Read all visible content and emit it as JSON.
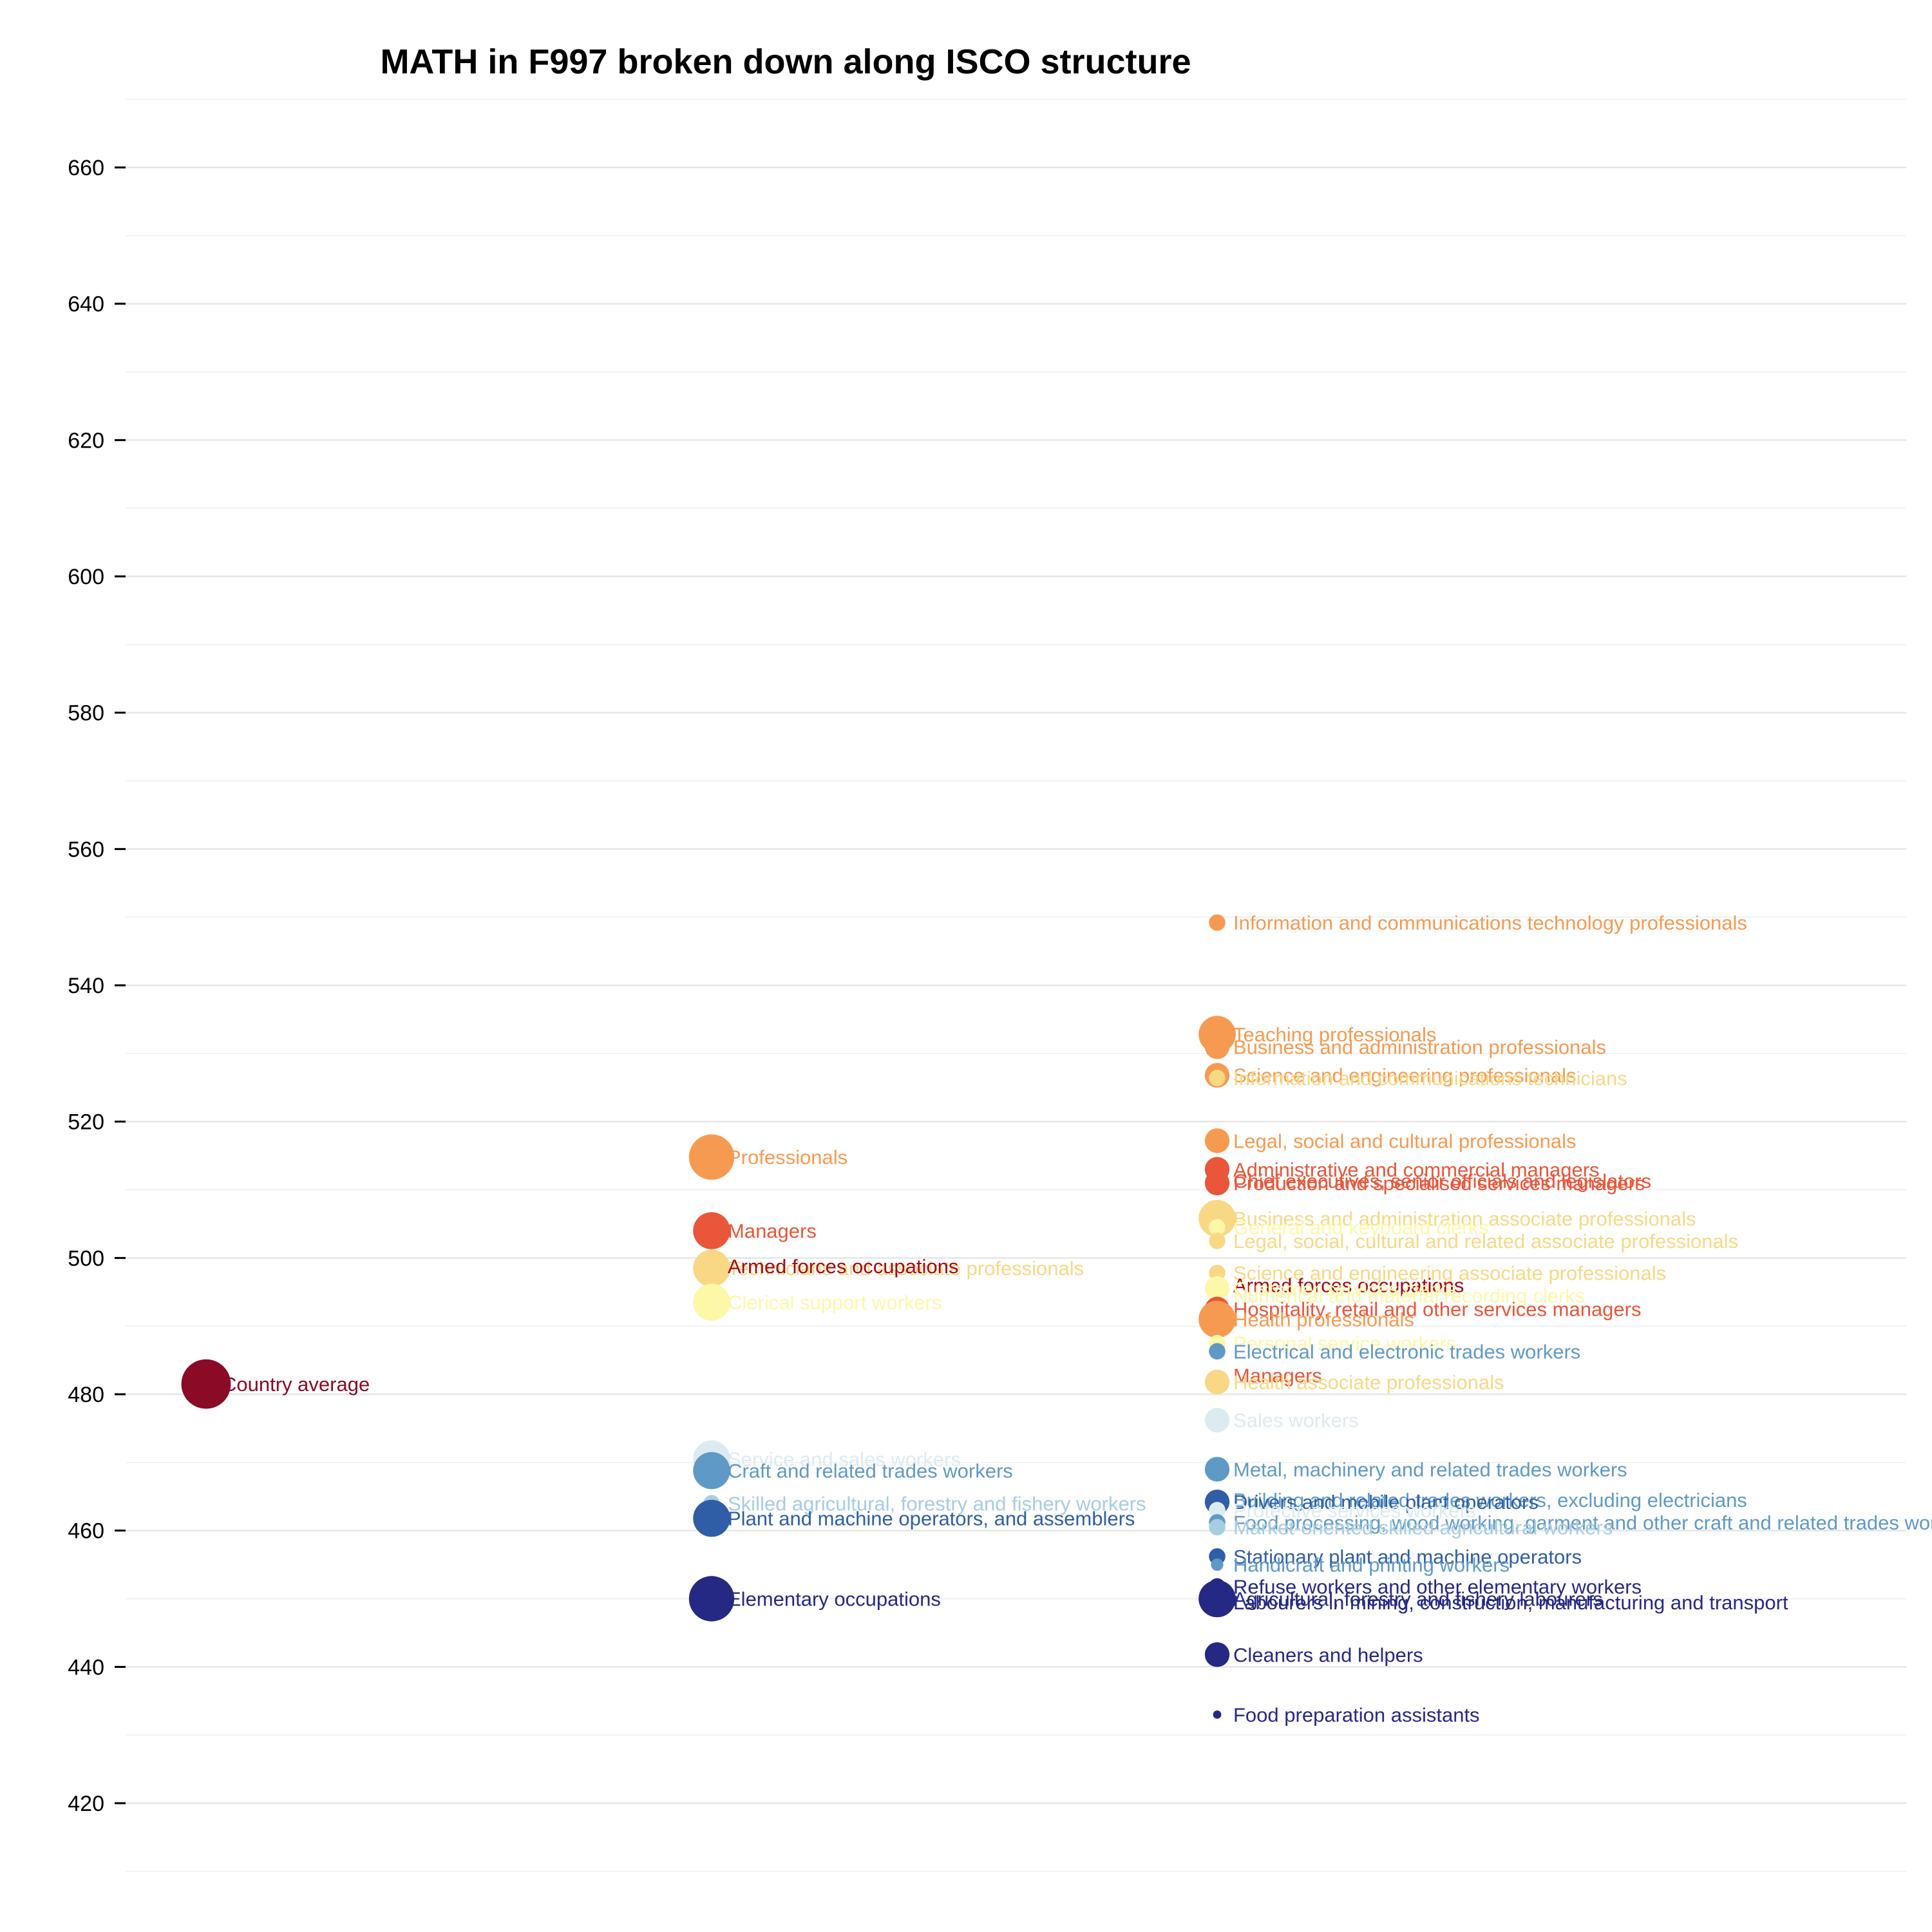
{
  "chart_data": {
    "type": "scatter",
    "title": "MATH in F997 broken down along ISCO structure",
    "xlabel": "",
    "ylabel": "",
    "ylim": [
      410,
      670
    ],
    "yticks": [
      420,
      440,
      460,
      480,
      500,
      520,
      540,
      560,
      580,
      600,
      620,
      640,
      660
    ],
    "grid": true,
    "legend": "none",
    "x_levels": [
      "country",
      "isco1",
      "isco2"
    ],
    "points": [
      {
        "level": "country",
        "label": "Country average",
        "value": 481.5,
        "color": "#8b0a26",
        "size": 12
      },
      {
        "level": "isco1",
        "label": "Professionals",
        "value": 514.8,
        "color": "#f79a51",
        "size": 11
      },
      {
        "level": "isco1",
        "label": "Managers",
        "value": 504.0,
        "color": "#e9563a",
        "size": 9
      },
      {
        "level": "isco1",
        "label": "Technicians and associate professionals",
        "value": 498.5,
        "color": "#f8d885",
        "size": 9
      },
      {
        "level": "isco1",
        "label": "Armed forces occupations",
        "value": 498.8,
        "color": "#a00a1c",
        "size": 0
      },
      {
        "level": "isco1",
        "label": "Clerical support workers",
        "value": 493.5,
        "color": "#fdf8a8",
        "size": 9
      },
      {
        "level": "isco1",
        "label": "Service and sales workers",
        "value": 470.5,
        "color": "#dcebf2",
        "size": 9
      },
      {
        "level": "isco1",
        "label": "Craft and related trades workers",
        "value": 468.8,
        "color": "#5f9ac6",
        "size": 9
      },
      {
        "level": "isco1",
        "label": "Skilled agricultural, forestry and fishery workers",
        "value": 464.0,
        "color": "#a7cde0",
        "size": 4
      },
      {
        "level": "isco1",
        "label": "Plant and machine operators, and assemblers",
        "value": 461.8,
        "color": "#2f5ea6",
        "size": 9
      },
      {
        "level": "isco1",
        "label": "Elementary occupations",
        "value": 450.0,
        "color": "#252983",
        "size": 11
      },
      {
        "level": "isco2",
        "label": "Information and communications technology professionals",
        "value": 549.2,
        "color": "#f79a51",
        "size": 4
      },
      {
        "level": "isco2",
        "label": "Teaching professionals",
        "value": 532.8,
        "color": "#f79a51",
        "size": 9
      },
      {
        "level": "isco2",
        "label": "Business and administration professionals",
        "value": 531.0,
        "color": "#f79a51",
        "size": 6
      },
      {
        "level": "isco2",
        "label": "Science and engineering professionals",
        "value": 526.8,
        "color": "#f79a51",
        "size": 6
      },
      {
        "level": "isco2",
        "label": "Information and communications technicians",
        "value": 526.4,
        "color": "#f8d885",
        "size": 4
      },
      {
        "level": "isco2",
        "label": "Legal, social and cultural professionals",
        "value": 517.2,
        "color": "#f79a51",
        "size": 6
      },
      {
        "level": "isco2",
        "label": "Administrative and commercial managers",
        "value": 513.0,
        "color": "#e9563a",
        "size": 6
      },
      {
        "level": "isco2",
        "label": "Chief executives, senior officials and legislators",
        "value": 511.3,
        "color": "#e9563a",
        "size": 4
      },
      {
        "level": "isco2",
        "label": "Production and specialised services managers",
        "value": 511.0,
        "color": "#e9563a",
        "size": 6
      },
      {
        "level": "isco2",
        "label": "Business and administration associate professionals",
        "value": 505.8,
        "color": "#f8d885",
        "size": 9
      },
      {
        "level": "isco2",
        "label": "General and keyboard clerks",
        "value": 504.5,
        "color": "#fdf8a8",
        "size": 4
      },
      {
        "level": "isco2",
        "label": "Legal, social, cultural and related associate professionals",
        "value": 502.5,
        "color": "#f8d885",
        "size": 4
      },
      {
        "level": "isco2",
        "label": "Science and engineering associate professionals",
        "value": 497.8,
        "color": "#f8d885",
        "size": 4
      },
      {
        "level": "isco2",
        "label": "Armed forces occupations",
        "value": 496.0,
        "color": "#a00a1c",
        "size": 0
      },
      {
        "level": "isco2",
        "label": "Customer services clerks",
        "value": 495.5,
        "color": "#fdf8a8",
        "size": 6
      },
      {
        "level": "isco2",
        "label": "Numerical and material recording clerks",
        "value": 494.5,
        "color": "#fdf8a8",
        "size": 4
      },
      {
        "level": "isco2",
        "label": "Hospitality, retail and other services managers",
        "value": 492.5,
        "color": "#e9563a",
        "size": 6
      },
      {
        "level": "isco2",
        "label": "Health professionals",
        "value": 491.0,
        "color": "#f79a51",
        "size": 9
      },
      {
        "level": "isco2",
        "label": "Personal service workers",
        "value": 487.5,
        "color": "#fdf8a8",
        "size": 4
      },
      {
        "level": "isco2",
        "label": "Electrical and electronic trades workers",
        "value": 486.3,
        "color": "#5f9ac6",
        "size": 4
      },
      {
        "level": "isco2",
        "label": "Managers",
        "value": 482.8,
        "color": "#e9563a",
        "size": 0
      },
      {
        "level": "isco2",
        "label": "Health associate professionals",
        "value": 481.8,
        "color": "#f8d885",
        "size": 6
      },
      {
        "level": "isco2",
        "label": "Sales workers",
        "value": 476.2,
        "color": "#dcebf2",
        "size": 6
      },
      {
        "level": "isco2",
        "label": "Metal, machinery and related trades workers",
        "value": 469.0,
        "color": "#5f9ac6",
        "size": 6
      },
      {
        "level": "isco2",
        "label": "Building and related trades workers, excluding electricians",
        "value": 464.5,
        "color": "#5f9ac6",
        "size": 4
      },
      {
        "level": "isco2",
        "label": "Drivers and mobile plant operators",
        "value": 464.2,
        "color": "#2f5ea6",
        "size": 6
      },
      {
        "level": "isco2",
        "label": "Protective services workers",
        "value": 463.0,
        "color": "#dcebf2",
        "size": 4
      },
      {
        "level": "isco2",
        "label": "Food processing, wood working, garment and other craft and related trades workers",
        "value": 461.2,
        "color": "#5f9ac6",
        "size": 4
      },
      {
        "level": "isco2",
        "label": "Market-oriented skilled agricultural workers",
        "value": 460.5,
        "color": "#a7cde0",
        "size": 4
      },
      {
        "level": "isco2",
        "label": "Stationary plant and machine operators",
        "value": 456.2,
        "color": "#2f5ea6",
        "size": 4
      },
      {
        "level": "isco2",
        "label": "Handicraft and printing workers",
        "value": 455.0,
        "color": "#5f9ac6",
        "size": 3
      },
      {
        "level": "isco2",
        "label": "Refuse workers and other elementary workers",
        "value": 451.8,
        "color": "#252983",
        "size": 4
      },
      {
        "level": "isco2",
        "label": "Agricultural, forestry and fishery labourers",
        "value": 450.0,
        "color": "#252983",
        "size": 9
      },
      {
        "level": "isco2",
        "label": "Labourers in mining, construction, manufacturing and transport",
        "value": 449.5,
        "color": "#252983",
        "size": 6
      },
      {
        "level": "isco2",
        "label": "Cleaners and helpers",
        "value": 441.8,
        "color": "#252983",
        "size": 6
      },
      {
        "level": "isco2",
        "label": "Food preparation assistants",
        "value": 433.0,
        "color": "#252983",
        "size": 2
      }
    ]
  }
}
